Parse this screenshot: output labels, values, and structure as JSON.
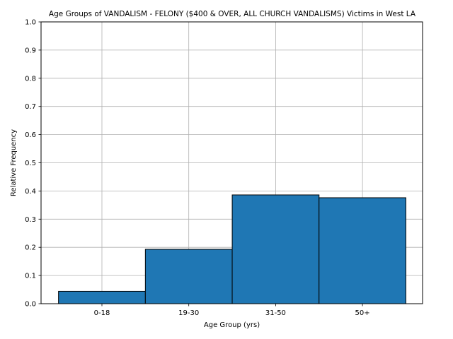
{
  "chart_data": {
    "type": "bar",
    "title": "Age Groups of VANDALISM - FELONY ($400 & OVER, ALL CHURCH VANDALISMS) Victims in West LA",
    "xlabel": "Age Group (yrs)",
    "ylabel": "Relative Frequency",
    "categories": [
      "0-18",
      "19-30",
      "31-50",
      "50+"
    ],
    "values": [
      0.044,
      0.193,
      0.386,
      0.376
    ],
    "ylim": [
      0,
      1.0
    ],
    "yticks": [
      "0.0",
      "0.1",
      "0.2",
      "0.3",
      "0.4",
      "0.5",
      "0.6",
      "0.7",
      "0.8",
      "0.9",
      "1.0"
    ],
    "grid": true,
    "legend": "none",
    "bar_color": "#1f77b4",
    "edge_color": "#000000",
    "grid_color": "#b0b0b0"
  }
}
